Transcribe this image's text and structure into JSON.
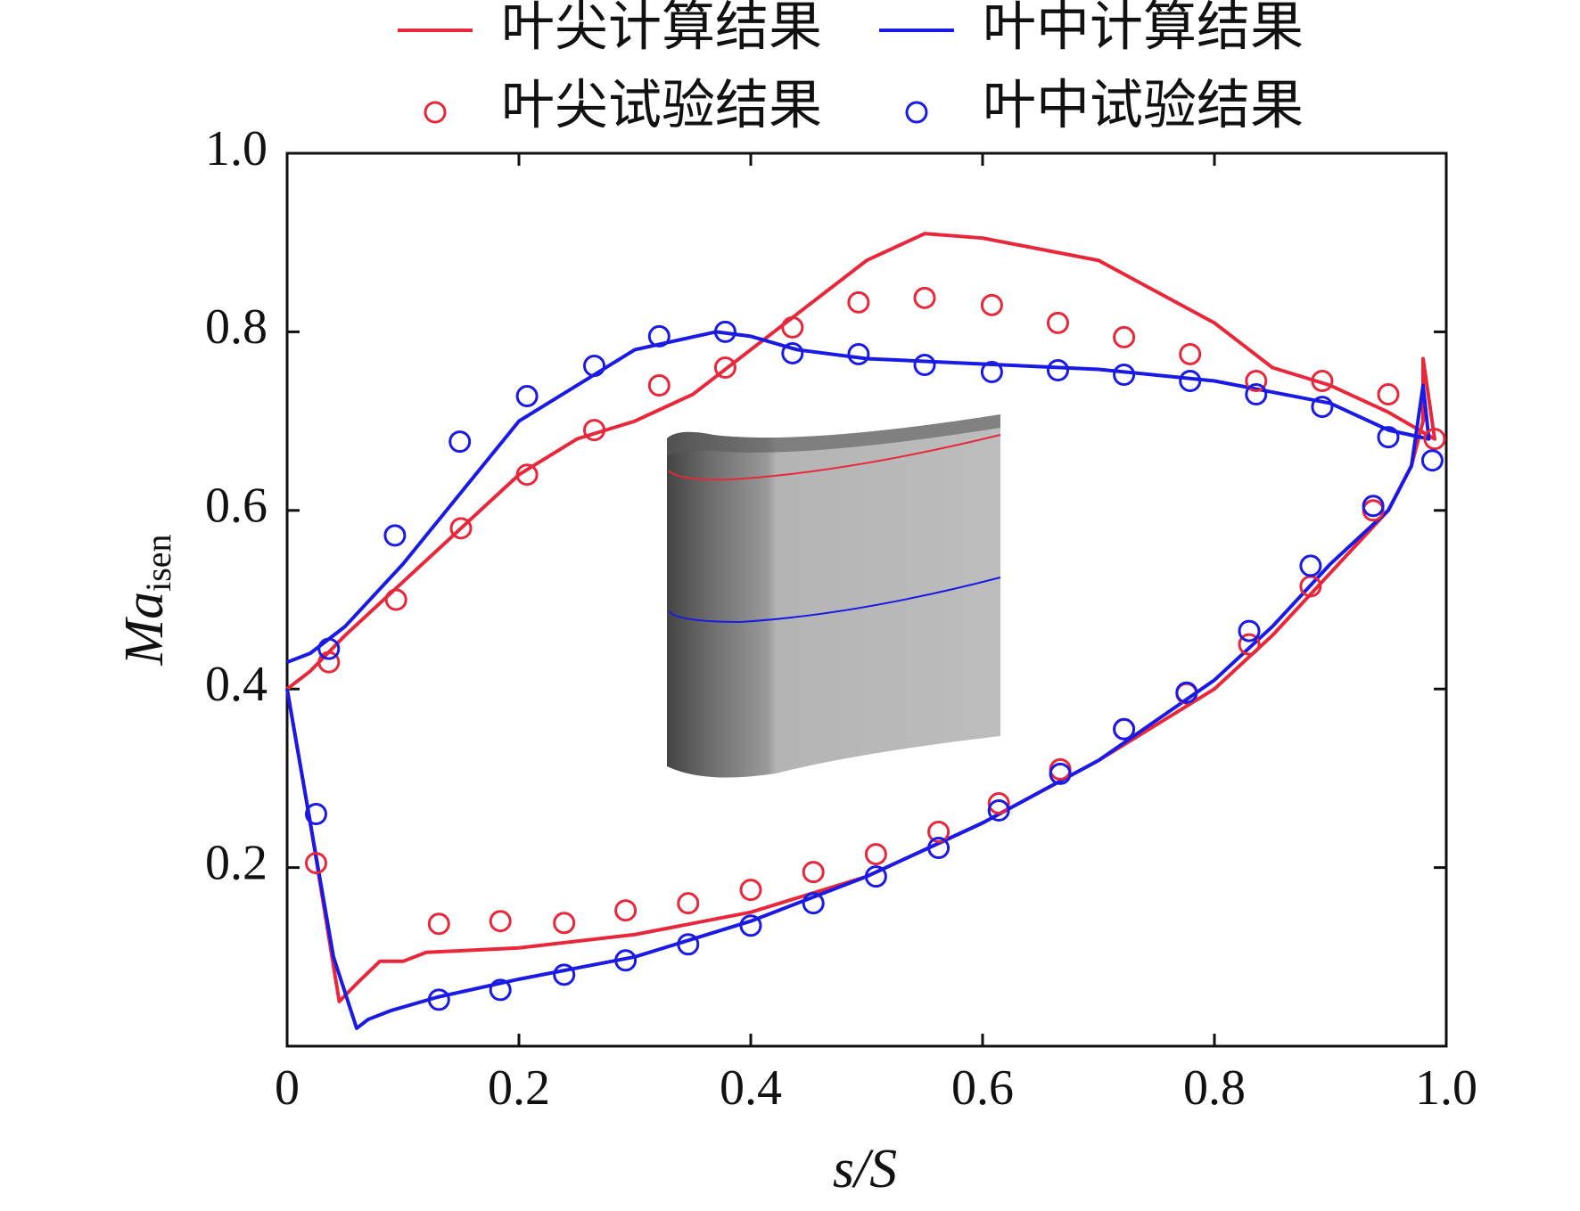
{
  "chart_data": {
    "type": "line",
    "xlabel": "s/S",
    "ylabel": "Ma",
    "ylabel_subscript": "isen",
    "xlim": [
      0,
      1
    ],
    "ylim": [
      0,
      1
    ],
    "xticks": [
      0,
      0.2,
      0.4,
      0.6,
      0.8,
      {
        "value": 1,
        "label": "1.0"
      }
    ],
    "yticks": [
      0.2,
      0.4,
      0.6,
      0.8,
      {
        "value": 1,
        "label": "1.0"
      }
    ],
    "series": [
      {
        "name": "叶尖计算结果",
        "color": "#e8283a",
        "kind": "line",
        "x": [
          0,
          0.02,
          0.045,
          0.06,
          0.08,
          0.1,
          0.12,
          0.2,
          0.3,
          0.4,
          0.5,
          0.6,
          0.7,
          0.8,
          0.85,
          0.9,
          0.95,
          0.97,
          0.98,
          0.98,
          0.99,
          0.95,
          0.9,
          0.85,
          0.8,
          0.7,
          0.6,
          0.55,
          0.5,
          0.45,
          0.4,
          0.35,
          0.3,
          0.25,
          0.2,
          0.15,
          0.1,
          0.05,
          0.02,
          0
        ],
        "values": [
          0.4,
          0.25,
          0.05,
          0.07,
          0.095,
          0.095,
          0.105,
          0.11,
          0.125,
          0.15,
          0.19,
          0.25,
          0.32,
          0.4,
          0.46,
          0.53,
          0.6,
          0.65,
          0.7,
          0.77,
          0.68,
          0.71,
          0.74,
          0.76,
          0.81,
          0.88,
          0.905,
          0.91,
          0.88,
          0.83,
          0.78,
          0.73,
          0.7,
          0.68,
          0.64,
          0.58,
          0.52,
          0.46,
          0.42,
          0.4
        ]
      },
      {
        "name": "叶中计算结果",
        "color": "#1a1ae6",
        "kind": "line",
        "x": [
          0,
          0.02,
          0.04,
          0.06,
          0.07,
          0.09,
          0.13,
          0.2,
          0.3,
          0.4,
          0.5,
          0.6,
          0.7,
          0.8,
          0.85,
          0.9,
          0.95,
          0.97,
          0.98,
          0.985,
          0.95,
          0.9,
          0.8,
          0.7,
          0.6,
          0.5,
          0.44,
          0.4,
          0.37,
          0.3,
          0.25,
          0.2,
          0.15,
          0.1,
          0.05,
          0.02,
          0
        ],
        "values": [
          0.4,
          0.25,
          0.1,
          0.02,
          0.03,
          0.04,
          0.055,
          0.075,
          0.1,
          0.14,
          0.19,
          0.25,
          0.32,
          0.41,
          0.47,
          0.54,
          0.6,
          0.65,
          0.74,
          0.68,
          0.69,
          0.72,
          0.745,
          0.758,
          0.764,
          0.77,
          0.78,
          0.795,
          0.8,
          0.78,
          0.74,
          0.7,
          0.62,
          0.54,
          0.47,
          0.44,
          0.43
        ]
      },
      {
        "name": "叶尖试验结果",
        "color": "#e8283a",
        "kind": "scatter",
        "x": [
          0.036,
          0.094,
          0.15,
          0.207,
          0.265,
          0.321,
          0.378,
          0.436,
          0.493,
          0.55,
          0.608,
          0.665,
          0.722,
          0.779,
          0.836,
          0.893,
          0.95,
          0.99,
          0.025,
          0.131,
          0.184,
          0.239,
          0.292,
          0.346,
          0.4,
          0.454,
          0.508,
          0.562,
          0.614,
          0.667,
          0.722,
          0.776,
          0.83,
          0.883,
          0.937
        ],
        "values": [
          0.43,
          0.5,
          0.58,
          0.64,
          0.69,
          0.74,
          0.76,
          0.805,
          0.833,
          0.838,
          0.83,
          0.81,
          0.794,
          0.775,
          0.745,
          0.745,
          0.73,
          0.68,
          0.205,
          0.137,
          0.14,
          0.138,
          0.152,
          0.16,
          0.175,
          0.195,
          0.215,
          0.24,
          0.272,
          0.31,
          0.355,
          0.395,
          0.45,
          0.515,
          0.6
        ]
      },
      {
        "name": "叶中试验结果",
        "color": "#1a1ae6",
        "kind": "scatter",
        "x": [
          0.036,
          0.093,
          0.149,
          0.207,
          0.265,
          0.321,
          0.378,
          0.436,
          0.493,
          0.55,
          0.608,
          0.665,
          0.722,
          0.779,
          0.836,
          0.893,
          0.95,
          0.988,
          0.025,
          0.131,
          0.184,
          0.239,
          0.292,
          0.346,
          0.4,
          0.454,
          0.508,
          0.562,
          0.614,
          0.667,
          0.722,
          0.776,
          0.83,
          0.883,
          0.937
        ],
        "values": [
          0.445,
          0.572,
          0.677,
          0.728,
          0.762,
          0.795,
          0.8,
          0.776,
          0.775,
          0.763,
          0.755,
          0.757,
          0.752,
          0.745,
          0.73,
          0.716,
          0.682,
          0.656,
          0.26,
          0.052,
          0.063,
          0.08,
          0.096,
          0.114,
          0.135,
          0.16,
          0.19,
          0.222,
          0.264,
          0.305,
          0.355,
          0.396,
          0.465,
          0.538,
          0.605
        ]
      }
    ]
  }
}
